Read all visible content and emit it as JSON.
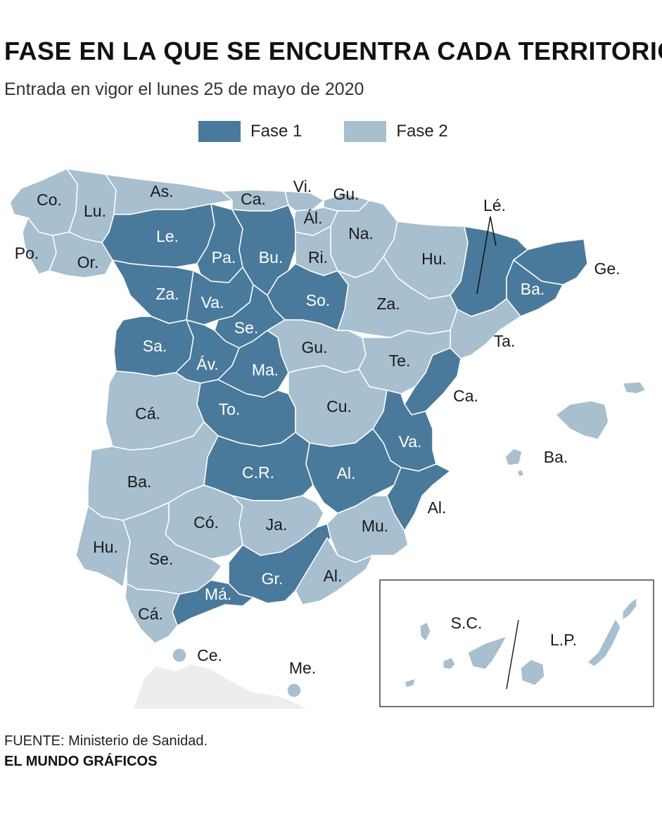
{
  "title": "FASE EN LA QUE SE ENCUENTRA CADA TERRITORIO",
  "subtitle": "Entrada en vigor el lunes 25 de mayo de 2020",
  "legend": [
    {
      "label": "Fase 1",
      "color": "#4a7a9b"
    },
    {
      "label": "Fase 2",
      "color": "#a7bfcf"
    }
  ],
  "colors": {
    "fase1": "#4a7a9b",
    "fase2": "#a7bfcf",
    "africa": "#ededed",
    "border": "#ffffff"
  },
  "provinces": [
    {
      "id": "coruna",
      "label": "Co.",
      "fase": 2
    },
    {
      "id": "lugo",
      "label": "Lu.",
      "fase": 2
    },
    {
      "id": "asturias",
      "label": "As.",
      "fase": 2
    },
    {
      "id": "cantabria",
      "label": "Ca.",
      "fase": 2
    },
    {
      "id": "vizcaya",
      "label": "Vi.",
      "fase": 2
    },
    {
      "id": "guipuzcoa",
      "label": "Gu.",
      "fase": 2
    },
    {
      "id": "alava",
      "label": "Ál.",
      "fase": 2
    },
    {
      "id": "navarra",
      "label": "Na.",
      "fase": 2
    },
    {
      "id": "pontevedra",
      "label": "Po.",
      "fase": 2
    },
    {
      "id": "orense",
      "label": "Or.",
      "fase": 2
    },
    {
      "id": "leon",
      "label": "Le.",
      "fase": 1
    },
    {
      "id": "palencia",
      "label": "Pa.",
      "fase": 1
    },
    {
      "id": "burgos",
      "label": "Bu.",
      "fase": 1
    },
    {
      "id": "rioja",
      "label": "Ri.",
      "fase": 2
    },
    {
      "id": "huesca",
      "label": "Hu.",
      "fase": 2
    },
    {
      "id": "lerida",
      "label": "Lé.",
      "fase": 1
    },
    {
      "id": "gerona",
      "label": "Ge.",
      "fase": 1
    },
    {
      "id": "barcelona",
      "label": "Ba.",
      "fase": 1
    },
    {
      "id": "zamora",
      "label": "Za.",
      "fase": 1
    },
    {
      "id": "valladolid",
      "label": "Va.",
      "fase": 1
    },
    {
      "id": "soria",
      "label": "So.",
      "fase": 1
    },
    {
      "id": "zaragoza",
      "label": "Za.",
      "fase": 2
    },
    {
      "id": "tarragona",
      "label": "Ta.",
      "fase": 2
    },
    {
      "id": "segovia",
      "label": "Se.",
      "fase": 1
    },
    {
      "id": "salamanca",
      "label": "Sa.",
      "fase": 1
    },
    {
      "id": "avila",
      "label": "Áv.",
      "fase": 1
    },
    {
      "id": "madrid",
      "label": "Ma.",
      "fase": 1
    },
    {
      "id": "guadalajara",
      "label": "Gu.",
      "fase": 2
    },
    {
      "id": "teruel",
      "label": "Te.",
      "fase": 2
    },
    {
      "id": "castellon",
      "label": "Ca.",
      "fase": 1
    },
    {
      "id": "caceres",
      "label": "Cá.",
      "fase": 2
    },
    {
      "id": "toledo",
      "label": "To.",
      "fase": 1
    },
    {
      "id": "cuenca",
      "label": "Cu.",
      "fase": 2
    },
    {
      "id": "valencia",
      "label": "Va.",
      "fase": 1
    },
    {
      "id": "baleares",
      "label": "Ba.",
      "fase": 2
    },
    {
      "id": "badajoz",
      "label": "Ba.",
      "fase": 2
    },
    {
      "id": "ciudadreal",
      "label": "C.R.",
      "fase": 1
    },
    {
      "id": "albacete",
      "label": "Al.",
      "fase": 1
    },
    {
      "id": "alicante",
      "label": "Al.",
      "fase": 1
    },
    {
      "id": "cordoba",
      "label": "Có.",
      "fase": 2
    },
    {
      "id": "jaen",
      "label": "Ja.",
      "fase": 2
    },
    {
      "id": "murcia",
      "label": "Mu.",
      "fase": 2
    },
    {
      "id": "huelva",
      "label": "Hu.",
      "fase": 2
    },
    {
      "id": "sevilla",
      "label": "Se.",
      "fase": 2
    },
    {
      "id": "granada",
      "label": "Gr.",
      "fase": 1
    },
    {
      "id": "almeria",
      "label": "Al.",
      "fase": 2
    },
    {
      "id": "malaga",
      "label": "Má.",
      "fase": 1
    },
    {
      "id": "cadiz",
      "label": "Cá.",
      "fase": 2
    },
    {
      "id": "ceuta",
      "label": "Ce.",
      "fase": 2
    },
    {
      "id": "melilla",
      "label": "Me.",
      "fase": 2
    },
    {
      "id": "santacruz",
      "label": "S.C.",
      "fase": 2
    },
    {
      "id": "laspalmas",
      "label": "L.P.",
      "fase": 2
    }
  ],
  "source": "FUENTE: Ministerio de Sanidad.",
  "credit": "EL MUNDO GRÁFICOS"
}
